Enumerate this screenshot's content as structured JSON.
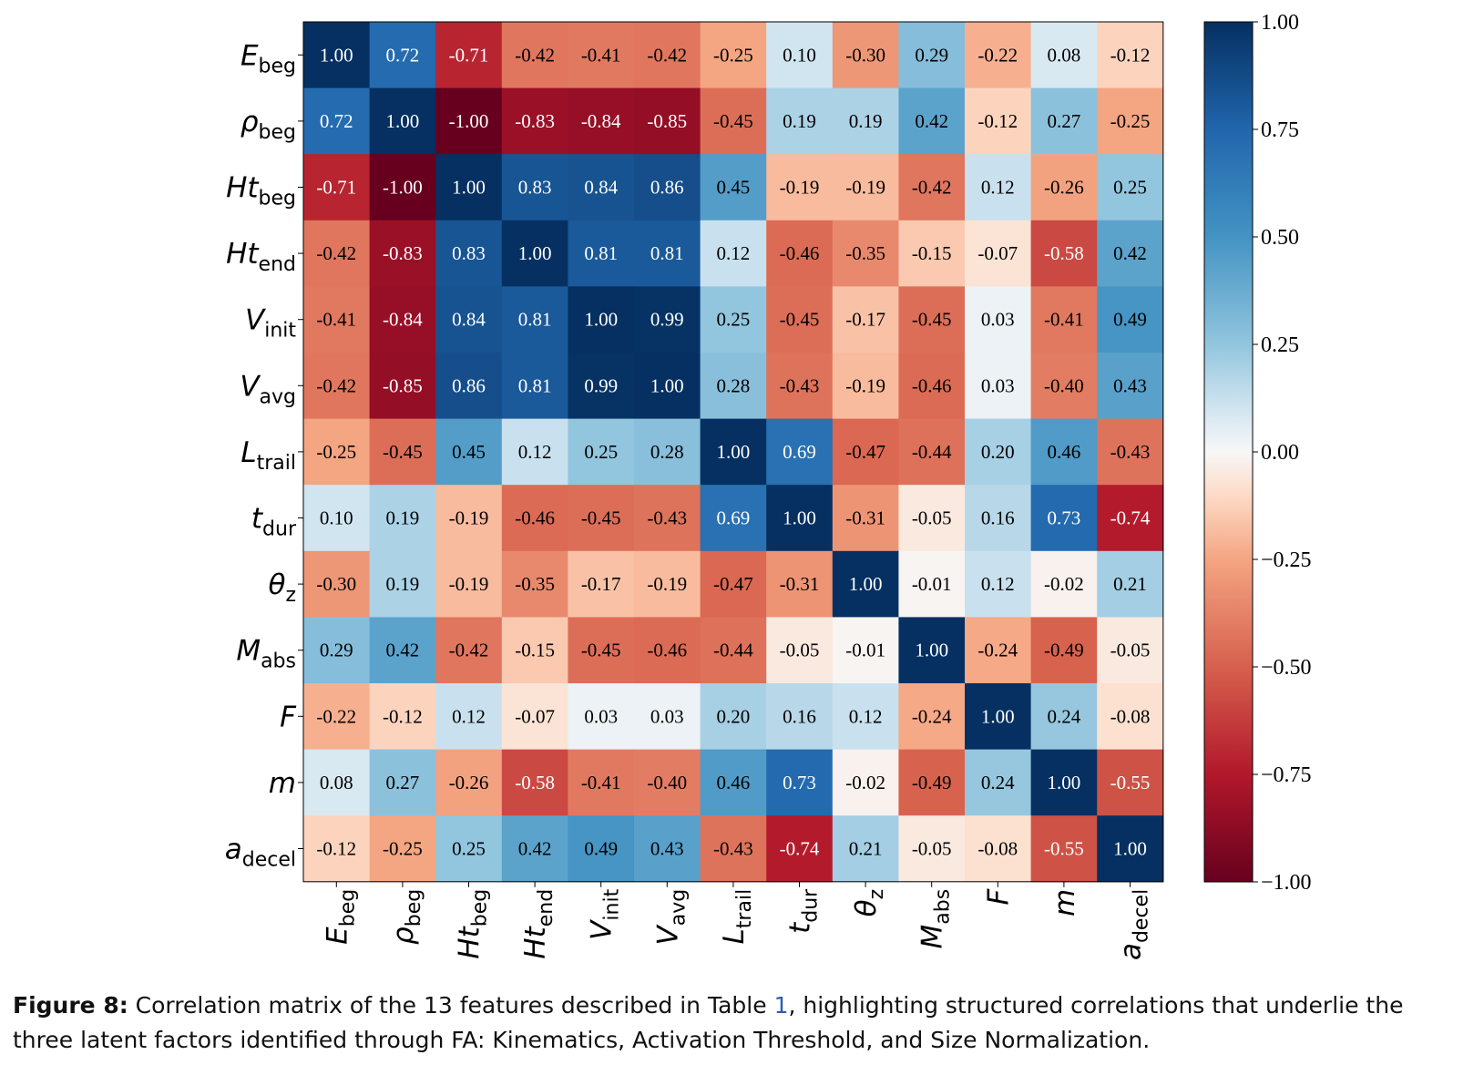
{
  "chart_data": {
    "type": "heatmap",
    "labels": [
      {
        "main": "E",
        "sub": "beg"
      },
      {
        "main": "ρ",
        "sub": "beg"
      },
      {
        "main": "Ht",
        "sub": "beg"
      },
      {
        "main": "Ht",
        "sub": "end"
      },
      {
        "main": "V",
        "sub": "init"
      },
      {
        "main": "V",
        "sub": "avg"
      },
      {
        "main": "L",
        "sub": "trail"
      },
      {
        "main": "t",
        "sub": "dur"
      },
      {
        "main": "θ",
        "sub": "z"
      },
      {
        "main": "M",
        "sub": "abs"
      },
      {
        "main": "F",
        "sub": ""
      },
      {
        "main": "m",
        "sub": ""
      },
      {
        "main": "a",
        "sub": "decel"
      }
    ],
    "matrix": [
      [
        1.0,
        0.72,
        -0.71,
        -0.42,
        -0.41,
        -0.42,
        -0.25,
        0.1,
        -0.3,
        0.29,
        -0.22,
        0.08,
        -0.12
      ],
      [
        0.72,
        1.0,
        -1.0,
        -0.83,
        -0.84,
        -0.85,
        -0.45,
        0.19,
        0.19,
        0.42,
        -0.12,
        0.27,
        -0.25
      ],
      [
        -0.71,
        -1.0,
        1.0,
        0.83,
        0.84,
        0.86,
        0.45,
        -0.19,
        -0.19,
        -0.42,
        0.12,
        -0.26,
        0.25
      ],
      [
        -0.42,
        -0.83,
        0.83,
        1.0,
        0.81,
        0.81,
        0.12,
        -0.46,
        -0.35,
        -0.15,
        -0.07,
        -0.58,
        0.42
      ],
      [
        -0.41,
        -0.84,
        0.84,
        0.81,
        1.0,
        0.99,
        0.25,
        -0.45,
        -0.17,
        -0.45,
        0.03,
        -0.41,
        0.49
      ],
      [
        -0.42,
        -0.85,
        0.86,
        0.81,
        0.99,
        1.0,
        0.28,
        -0.43,
        -0.19,
        -0.46,
        0.03,
        -0.4,
        0.43
      ],
      [
        -0.25,
        -0.45,
        0.45,
        0.12,
        0.25,
        0.28,
        1.0,
        0.69,
        -0.47,
        -0.44,
        0.2,
        0.46,
        -0.43
      ],
      [
        0.1,
        0.19,
        -0.19,
        -0.46,
        -0.45,
        -0.43,
        0.69,
        1.0,
        -0.31,
        -0.05,
        0.16,
        0.73,
        -0.74
      ],
      [
        -0.3,
        0.19,
        -0.19,
        -0.35,
        -0.17,
        -0.19,
        -0.47,
        -0.31,
        1.0,
        -0.01,
        0.12,
        -0.02,
        0.21
      ],
      [
        0.29,
        0.42,
        -0.42,
        -0.15,
        -0.45,
        -0.46,
        -0.44,
        -0.05,
        -0.01,
        1.0,
        -0.24,
        -0.49,
        -0.05
      ],
      [
        -0.22,
        -0.12,
        0.12,
        -0.07,
        0.03,
        0.03,
        0.2,
        0.16,
        0.12,
        -0.24,
        1.0,
        0.24,
        -0.08
      ],
      [
        0.08,
        0.27,
        -0.26,
        -0.58,
        -0.41,
        -0.4,
        0.46,
        0.73,
        -0.02,
        -0.49,
        0.24,
        1.0,
        -0.55
      ],
      [
        -0.12,
        -0.25,
        0.25,
        0.42,
        0.49,
        0.43,
        -0.43,
        -0.74,
        0.21,
        -0.05,
        -0.08,
        -0.55,
        1.0
      ]
    ],
    "colorscale": "RdBu",
    "vmin": -1.0,
    "vmax": 1.0,
    "colorbar_ticks": [
      "1.00",
      "0.75",
      "0.50",
      "0.25",
      "0.00",
      "−0.25",
      "−0.50",
      "−0.75",
      "−1.00"
    ],
    "colorbar_tick_values": [
      1.0,
      0.75,
      0.5,
      0.25,
      0.0,
      -0.25,
      -0.5,
      -0.75,
      -1.0
    ]
  },
  "caption": {
    "label": "Figure 8:",
    "text_before_ref": " Correlation matrix of the 13 features described in Table ",
    "ref": "1",
    "text_after_ref": ", highlighting structured correlations that underlie the three latent factors identified through FA: Kinematics, Activation Threshold, and Size Normalization."
  }
}
